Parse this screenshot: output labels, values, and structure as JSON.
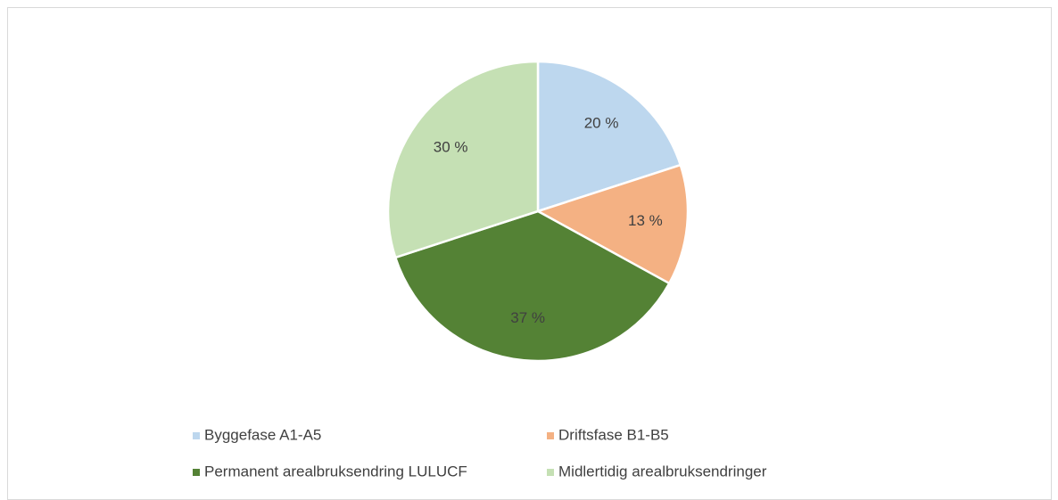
{
  "chart_data": {
    "type": "pie",
    "categories": [
      "Byggefase A1-A5",
      "Driftsfase B1-B5",
      "Permanent arealbruksendring LULUCF",
      "Midlertidig arealbruksendringer"
    ],
    "values": [
      20,
      13,
      37,
      30
    ],
    "value_labels": [
      "20 %",
      "13 %",
      "37 %",
      "30 %"
    ],
    "colors": [
      "#bdd7ee",
      "#f4b183",
      "#548235",
      "#c5e0b4"
    ],
    "legend": "bottom"
  }
}
